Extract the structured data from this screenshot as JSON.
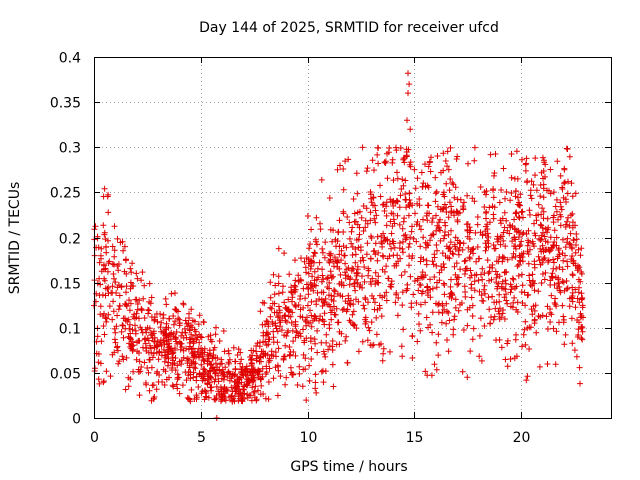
{
  "chart_data": {
    "type": "scatter",
    "title": "Day 144 of 2025, SRMTID for receiver ufcd",
    "xlabel": "GPS time / hours",
    "ylabel": "SRMTID / TECUs",
    "xlim": [
      0,
      24.2
    ],
    "ylim": [
      0,
      0.4
    ],
    "xticks": [
      0,
      5,
      10,
      15,
      20
    ],
    "xtick_labels": [
      "0",
      "5",
      "10",
      "15",
      "20"
    ],
    "yticks": [
      0,
      0.05,
      0.1,
      0.15,
      0.2,
      0.25,
      0.3,
      0.35,
      0.4
    ],
    "ytick_labels": [
      "0",
      "0.05",
      "0.1",
      "0.15",
      "0.2",
      "0.25",
      "0.3",
      "0.35",
      "0.4"
    ],
    "grid": true,
    "marker": "plus",
    "color": "#e00000",
    "series": [
      {
        "name": "SRMTID",
        "trend": {
          "x": [
            0,
            0.5,
            1,
            1.5,
            2,
            2.5,
            3,
            3.5,
            4,
            4.5,
            5,
            5.5,
            6,
            6.5,
            7,
            7.5,
            8,
            8.5,
            9,
            9.5,
            10,
            10.5,
            11,
            11.5,
            12,
            12.5,
            13,
            13.5,
            14,
            14.5,
            15,
            15.5,
            16,
            16.5,
            17,
            17.5,
            18,
            18.5,
            19,
            19.5,
            20,
            20.5,
            21,
            21.5,
            22,
            22.5,
            22.9
          ],
          "y": [
            0.15,
            0.16,
            0.14,
            0.12,
            0.1,
            0.09,
            0.085,
            0.08,
            0.075,
            0.07,
            0.065,
            0.055,
            0.045,
            0.04,
            0.04,
            0.05,
            0.075,
            0.1,
            0.11,
            0.12,
            0.13,
            0.15,
            0.14,
            0.15,
            0.16,
            0.17,
            0.18,
            0.19,
            0.19,
            0.21,
            0.2,
            0.19,
            0.18,
            0.19,
            0.17,
            0.18,
            0.17,
            0.18,
            0.17,
            0.18,
            0.19,
            0.18,
            0.19,
            0.18,
            0.2,
            0.17,
            0.11
          ]
        },
        "peaks": [
          {
            "x": 14.7,
            "y": 0.382
          },
          {
            "x": 14.75,
            "y": 0.37
          },
          {
            "x": 14.7,
            "y": 0.36
          },
          {
            "x": 14.65,
            "y": 0.33
          },
          {
            "x": 14.8,
            "y": 0.32
          },
          {
            "x": 5.75,
            "y": 0.0
          },
          {
            "x": 17.8,
            "y": 0.285
          },
          {
            "x": 11.4,
            "y": 0.275
          },
          {
            "x": 19.7,
            "y": 0.265
          },
          {
            "x": 22.0,
            "y": 0.26
          }
        ]
      }
    ]
  }
}
